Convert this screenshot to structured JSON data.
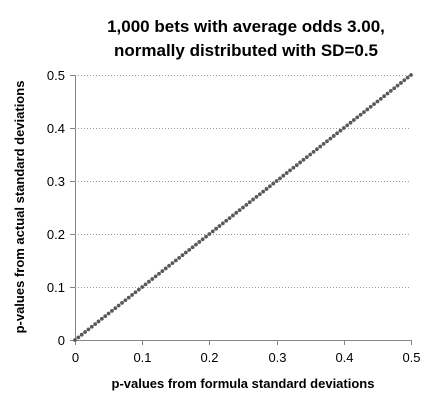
{
  "chart_data": {
    "type": "scatter",
    "title_lines": [
      "1,000 bets with average odds 3.00,",
      "normally distributed with SD=0.5"
    ],
    "xlabel": "p-values from formula standard deviations",
    "ylabel": "p-values from actual standard deviations",
    "xlim": [
      0,
      0.5
    ],
    "ylim": [
      0,
      0.5
    ],
    "xticks": [
      0,
      0.1,
      0.2,
      0.3,
      0.4,
      0.5
    ],
    "yticks": [
      0,
      0.1,
      0.2,
      0.3,
      0.4,
      0.5
    ],
    "xtick_labels": [
      "0",
      "0.1",
      "0.2",
      "0.3",
      "0.4",
      "0.5"
    ],
    "ytick_labels": [
      "0",
      "0.1",
      "0.2",
      "0.3",
      "0.4",
      "0.5"
    ],
    "grid": "horizontal",
    "legend": "none",
    "marker_color": "#595959",
    "series": [
      {
        "x": [
          0.0,
          0.005,
          0.01,
          0.015,
          0.02,
          0.025,
          0.03,
          0.035,
          0.04,
          0.045,
          0.05,
          0.055,
          0.06,
          0.065,
          0.07,
          0.075,
          0.08,
          0.085,
          0.09,
          0.095,
          0.1,
          0.105,
          0.11,
          0.115,
          0.12,
          0.125,
          0.13,
          0.135,
          0.14,
          0.145,
          0.15,
          0.155,
          0.16,
          0.165,
          0.17,
          0.175,
          0.18,
          0.185,
          0.19,
          0.195,
          0.2,
          0.205,
          0.21,
          0.215,
          0.22,
          0.225,
          0.23,
          0.235,
          0.24,
          0.245,
          0.25,
          0.255,
          0.26,
          0.265,
          0.27,
          0.275,
          0.28,
          0.285,
          0.29,
          0.295,
          0.3,
          0.305,
          0.31,
          0.315,
          0.32,
          0.325,
          0.33,
          0.335,
          0.34,
          0.345,
          0.35,
          0.355,
          0.36,
          0.365,
          0.37,
          0.375,
          0.38,
          0.385,
          0.39,
          0.395,
          0.4,
          0.405,
          0.41,
          0.415,
          0.42,
          0.425,
          0.43,
          0.435,
          0.44,
          0.445,
          0.45,
          0.455,
          0.46,
          0.465,
          0.47,
          0.475,
          0.48,
          0.485,
          0.49,
          0.495,
          0.5
        ],
        "y": [
          0.0,
          0.005,
          0.01,
          0.015,
          0.02,
          0.025,
          0.03,
          0.035,
          0.04,
          0.045,
          0.05,
          0.055,
          0.06,
          0.065,
          0.07,
          0.075,
          0.08,
          0.085,
          0.09,
          0.095,
          0.1,
          0.105,
          0.11,
          0.115,
          0.12,
          0.125,
          0.13,
          0.135,
          0.14,
          0.145,
          0.15,
          0.155,
          0.16,
          0.165,
          0.17,
          0.175,
          0.18,
          0.185,
          0.19,
          0.195,
          0.2,
          0.205,
          0.21,
          0.215,
          0.22,
          0.225,
          0.23,
          0.235,
          0.24,
          0.245,
          0.25,
          0.255,
          0.26,
          0.265,
          0.27,
          0.275,
          0.28,
          0.285,
          0.29,
          0.295,
          0.3,
          0.305,
          0.31,
          0.315,
          0.32,
          0.325,
          0.33,
          0.335,
          0.34,
          0.345,
          0.35,
          0.355,
          0.36,
          0.365,
          0.37,
          0.375,
          0.38,
          0.385,
          0.39,
          0.395,
          0.4,
          0.405,
          0.41,
          0.415,
          0.42,
          0.425,
          0.43,
          0.435,
          0.44,
          0.445,
          0.45,
          0.455,
          0.46,
          0.465,
          0.47,
          0.475,
          0.48,
          0.485,
          0.49,
          0.495,
          0.5
        ]
      }
    ]
  }
}
